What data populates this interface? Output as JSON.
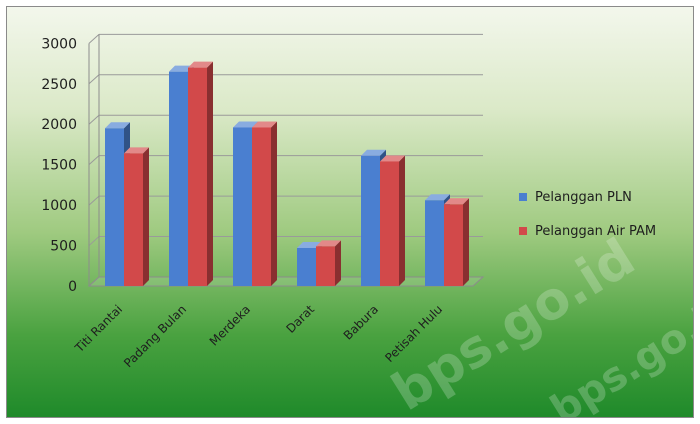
{
  "chart_data": {
    "type": "bar",
    "categories": [
      "Titi Rantai",
      "Padang Bulan",
      "Merdeka",
      "Darat",
      "Babura",
      "Petisah Hulu"
    ],
    "series": [
      {
        "name": "Pelanggan PLN",
        "color": "#4a7fd0",
        "values": [
          1950,
          2650,
          1960,
          470,
          1610,
          1060
        ]
      },
      {
        "name": "Pelanggan Air PAM",
        "color": "#d2494a",
        "values": [
          1640,
          2700,
          1960,
          490,
          1540,
          1010
        ]
      }
    ],
    "yticks": [
      0,
      500,
      1000,
      1500,
      2000,
      2500,
      3000
    ],
    "ylim": [
      0,
      3000
    ],
    "grid": true,
    "legend_position": "right",
    "style": "3d-clustered-column"
  },
  "watermark": "bps.go.id"
}
